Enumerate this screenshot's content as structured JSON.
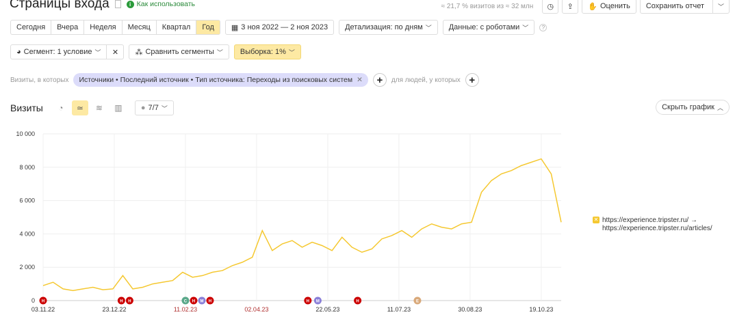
{
  "header": {
    "title": "Страницы входа",
    "how_to_use": "Как использовать",
    "sample_info": "≈ 21,7 % визитов из ≈ 32 млн",
    "rate_label": "Оценить",
    "save_label": "Сохранить отчет"
  },
  "periods": [
    {
      "label": "Сегодня"
    },
    {
      "label": "Вчера"
    },
    {
      "label": "Неделя"
    },
    {
      "label": "Месяц"
    },
    {
      "label": "Квартал"
    },
    {
      "label": "Год",
      "active": true
    }
  ],
  "date_range": "3 ноя 2022 — 2 ноя 2023",
  "detail_label": "Детализация: по дням",
  "data_label": "Данные: с роботами",
  "segment_label": "Сегмент: 1 условие",
  "compare_label": "Сравнить сегменты",
  "sample_label": "Выборка: 1%",
  "filter": {
    "prefix": "Визиты, в которых",
    "chip": "Источники • Последний источник • Тип источника: Переходы из поисковых систем",
    "people": "для людей, у которых"
  },
  "chart_header": {
    "title": "Визиты",
    "notes": "7/7",
    "hide_label": "Скрыть график"
  },
  "colors": {
    "accent": "#fde9a3",
    "line": "#f5c830",
    "chip": "#dcdcfa",
    "note_red": "#cc0000",
    "note_purple": "#8a7fd8",
    "note_green": "#5aa88a",
    "note_tan": "#d9a97a"
  },
  "chart_data": {
    "type": "line",
    "ylim": [
      0,
      10000
    ],
    "yticks": [
      "0",
      "2 000",
      "4 000",
      "6 000",
      "8 000",
      "10 000"
    ],
    "ytick_values": [
      0,
      2000,
      4000,
      6000,
      8000,
      10000
    ],
    "xticks": [
      "03.11.22",
      "23.12.22",
      "11.02.23",
      "02.04.23",
      "22.05.23",
      "11.07.23",
      "30.08.23",
      "19.10.23"
    ],
    "xtick_holiday": [
      false,
      false,
      true,
      true,
      false,
      false,
      false,
      false
    ],
    "xlim": [
      "2022-11-03",
      "2023-11-02"
    ],
    "grid": true,
    "series": [
      {
        "name": "https://experience.tripster.ru/ → https://experience.tripster.ru/articles/",
        "x": [
          "2022-11-03",
          "2022-11-10",
          "2022-11-17",
          "2022-11-24",
          "2022-12-01",
          "2022-12-08",
          "2022-12-15",
          "2022-12-22",
          "2022-12-29",
          "2023-01-05",
          "2023-01-12",
          "2023-01-19",
          "2023-01-26",
          "2023-02-02",
          "2023-02-09",
          "2023-02-16",
          "2023-02-23",
          "2023-03-02",
          "2023-03-09",
          "2023-03-16",
          "2023-03-23",
          "2023-03-30",
          "2023-04-06",
          "2023-04-13",
          "2023-04-20",
          "2023-04-27",
          "2023-05-04",
          "2023-05-11",
          "2023-05-18",
          "2023-05-25",
          "2023-06-01",
          "2023-06-08",
          "2023-06-15",
          "2023-06-22",
          "2023-06-29",
          "2023-07-06",
          "2023-07-13",
          "2023-07-20",
          "2023-07-27",
          "2023-08-03",
          "2023-08-10",
          "2023-08-17",
          "2023-08-24",
          "2023-08-31",
          "2023-09-07",
          "2023-09-14",
          "2023-09-21",
          "2023-09-28",
          "2023-10-05",
          "2023-10-12",
          "2023-10-19",
          "2023-10-26",
          "2023-11-02"
        ],
        "values": [
          900,
          1100,
          700,
          600,
          700,
          800,
          650,
          700,
          1500,
          700,
          800,
          1000,
          1100,
          1200,
          1700,
          1400,
          1500,
          1700,
          1800,
          2100,
          2300,
          2600,
          4200,
          3000,
          3400,
          3600,
          3200,
          3500,
          3300,
          3000,
          3800,
          3200,
          2900,
          3100,
          3700,
          3900,
          4200,
          3800,
          4300,
          4600,
          4400,
          4300,
          4600,
          4700,
          6500,
          7200,
          7600,
          7800,
          8100,
          8300,
          8500,
          7600,
          4700
        ]
      }
    ],
    "annotations": [
      {
        "date": "2022-11-03",
        "letter": "Н",
        "color": "red"
      },
      {
        "date": "2022-12-28",
        "letter": "Н",
        "color": "red"
      },
      {
        "date": "2023-01-02",
        "letter": "Н",
        "color": "red"
      },
      {
        "date": "2023-02-11",
        "letter": "С",
        "color": "green"
      },
      {
        "date": "2023-02-13",
        "letter": "Н",
        "color": "red"
      },
      {
        "date": "2023-02-18",
        "letter": "М",
        "color": "purple"
      },
      {
        "date": "2023-02-24",
        "letter": "Н",
        "color": "red"
      },
      {
        "date": "2023-05-08",
        "letter": "Н",
        "color": "red"
      },
      {
        "date": "2023-05-15",
        "letter": "М",
        "color": "purple"
      },
      {
        "date": "2023-06-12",
        "letter": "Н",
        "color": "red"
      },
      {
        "date": "2023-07-24",
        "letter": "Е",
        "color": "tan"
      }
    ]
  }
}
